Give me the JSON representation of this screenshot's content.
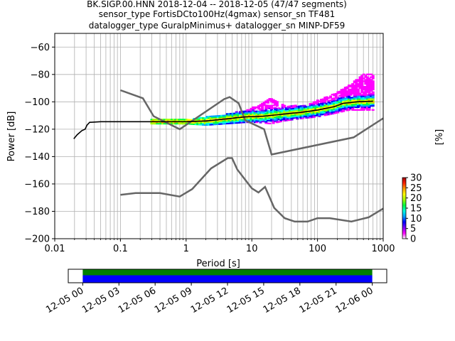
{
  "chart_data": {
    "type": "heatmap",
    "title_lines": [
      "BK.SIGP.00.HNN   2018-12-04 -- 2018-12-05  (47/47 segments)",
      "sensor_type FortisDCto100Hz(4gmax) sensor_sn TF481",
      "datalogger_type GuralpMinimus+ datalogger_sn MINP-DF59"
    ],
    "xlabel": "Period [s]",
    "ylabel": "Power [dB]",
    "xscale": "log",
    "xlim": [
      0.01,
      1000
    ],
    "ylim": [
      -200,
      -50
    ],
    "grid": true,
    "x_ticks": [
      {
        "value": 0.01,
        "label": "0.01"
      },
      {
        "value": 0.1,
        "label": "0.1"
      },
      {
        "value": 1,
        "label": "1"
      },
      {
        "value": 10,
        "label": "10"
      },
      {
        "value": 100,
        "label": "100"
      },
      {
        "value": 1000,
        "label": "1000"
      }
    ],
    "y_ticks": [
      {
        "value": -60,
        "label": "−60"
      },
      {
        "value": -80,
        "label": "−80"
      },
      {
        "value": -100,
        "label": "−100"
      },
      {
        "value": -120,
        "label": "−120"
      },
      {
        "value": -140,
        "label": "−140"
      },
      {
        "value": -160,
        "label": "−160"
      },
      {
        "value": -180,
        "label": "−180"
      },
      {
        "value": -200,
        "label": "−200"
      }
    ],
    "noise_model_high": [
      [
        0.1,
        -91.5
      ],
      [
        0.22,
        -97.4
      ],
      [
        0.32,
        -110.5
      ],
      [
        0.8,
        -120.0
      ],
      [
        3.8,
        -98.0
      ],
      [
        4.6,
        -96.5
      ],
      [
        6.3,
        -101.0
      ],
      [
        7.9,
        -113.5
      ],
      [
        15.4,
        -120.0
      ],
      [
        20,
        -138.5
      ],
      [
        354.8,
        -126.0
      ],
      [
        1000,
        -112.0
      ]
    ],
    "noise_model_low": [
      [
        0.1,
        -168.0
      ],
      [
        0.17,
        -166.7
      ],
      [
        0.4,
        -166.7
      ],
      [
        0.8,
        -169.2
      ],
      [
        1.24,
        -163.7
      ],
      [
        2.4,
        -148.6
      ],
      [
        4.3,
        -141.1
      ],
      [
        5.0,
        -141.1
      ],
      [
        6.0,
        -149.4
      ],
      [
        10.0,
        -163.2
      ],
      [
        12.6,
        -166.2
      ],
      [
        15.9,
        -162.1
      ],
      [
        21.9,
        -177.5
      ],
      [
        31.6,
        -185.0
      ],
      [
        45,
        -187.5
      ],
      [
        70.8,
        -187.5
      ],
      [
        100,
        -185.0
      ],
      [
        154,
        -185.0
      ],
      [
        328,
        -187.5
      ],
      [
        600,
        -184.4
      ],
      [
        1000,
        -178.0
      ]
    ],
    "mean_psd": [
      [
        0.0195,
        -127
      ],
      [
        0.022,
        -124
      ],
      [
        0.026,
        -121
      ],
      [
        0.029,
        -120
      ],
      [
        0.031,
        -117
      ],
      [
        0.034,
        -115
      ],
      [
        0.05,
        -114.5
      ],
      [
        0.1,
        -114.5
      ],
      [
        0.5,
        -114.5
      ],
      [
        1.0,
        -114.5
      ],
      [
        2.0,
        -114
      ],
      [
        4.0,
        -112.5
      ],
      [
        8.0,
        -111
      ],
      [
        15,
        -110.5
      ],
      [
        30,
        -109
      ],
      [
        60,
        -107.5
      ],
      [
        100,
        -106
      ],
      [
        180,
        -103.5
      ],
      [
        250,
        -101
      ],
      [
        400,
        -100
      ],
      [
        700,
        -99.5
      ]
    ],
    "histogram_envelope": [
      [
        0.3,
        -116,
        -113
      ],
      [
        1.0,
        -116,
        -113
      ],
      [
        2,
        -117,
        -111
      ],
      [
        4,
        -116,
        -109
      ],
      [
        8,
        -115,
        -106
      ],
      [
        12,
        -115,
        -103
      ],
      [
        20,
        -116,
        -97
      ],
      [
        30,
        -114,
        -102
      ],
      [
        60,
        -112,
        -103
      ],
      [
        100,
        -111,
        -99
      ],
      [
        200,
        -108,
        -93
      ],
      [
        300,
        -106,
        -88
      ],
      [
        500,
        -106,
        -80
      ],
      [
        700,
        -106,
        -79
      ]
    ],
    "colorbar": {
      "label": "[%]",
      "range": [
        0,
        30
      ],
      "ticks": [
        {
          "value": 0,
          "label": "0"
        },
        {
          "value": 5,
          "label": "5"
        },
        {
          "value": 10,
          "label": "10"
        },
        {
          "value": 15,
          "label": "15"
        },
        {
          "value": 20,
          "label": "20"
        },
        {
          "value": 25,
          "label": "25"
        },
        {
          "value": 30,
          "label": "30"
        }
      ],
      "colors": [
        "#ffffff",
        "#ff00ff",
        "#7b00ff",
        "#0000ff",
        "#00a0ff",
        "#00ffe0",
        "#00ff40",
        "#a0ff00",
        "#ffff00",
        "#ffa000",
        "#ff2000",
        "#a00000"
      ]
    },
    "coverage": {
      "tick_labels": [
        "12-05 00",
        "12-05 03",
        "12-05 06",
        "12-05 09",
        "12-05 12",
        "12-05 15",
        "12-05 18",
        "12-05 21",
        "12-06 00"
      ],
      "tick_hours": [
        0,
        3,
        6,
        9,
        12,
        15,
        18,
        21,
        24
      ],
      "data_span_hours": [
        0,
        24
      ],
      "axis_span_hours": [
        -1.2,
        25.2
      ],
      "colors": {
        "used": "#008000",
        "available": "#0000ff"
      }
    }
  }
}
